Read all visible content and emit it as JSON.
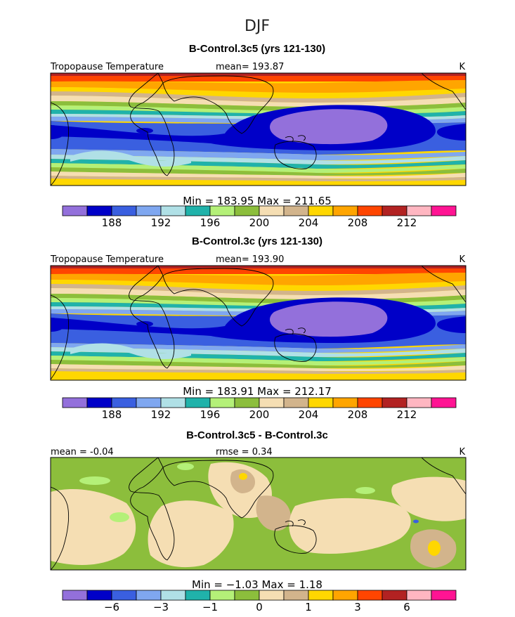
{
  "season": "DJF",
  "units": "K",
  "chart_data": [
    {
      "type": "heatmap",
      "title": "B-Control.3c5 (yrs 121-130)",
      "subtitle_left": "Tropopause Temperature",
      "subtitle_mid": "mean=  193.87",
      "units": "K",
      "range_label": "Min  =  183.95  Max  =  211.65",
      "min": 183.95,
      "max": 211.65,
      "mean": 193.87,
      "colorbar_tick_labels": [
        "188",
        "192",
        "196",
        "200",
        "204",
        "208",
        "212"
      ],
      "contour_levels": [
        186,
        188,
        190,
        192,
        194,
        196,
        198,
        200,
        202,
        204,
        206,
        208,
        210,
        212
      ]
    },
    {
      "type": "heatmap",
      "title": "B-Control.3c (yrs 121-130)",
      "subtitle_left": "Tropopause Temperature",
      "subtitle_mid": "mean=  193.90",
      "units": "K",
      "range_label": "Min  =  183.91  Max  =  212.17",
      "min": 183.91,
      "max": 212.17,
      "mean": 193.9,
      "colorbar_tick_labels": [
        "188",
        "192",
        "196",
        "200",
        "204",
        "208",
        "212"
      ],
      "contour_levels": [
        186,
        188,
        190,
        192,
        194,
        196,
        198,
        200,
        202,
        204,
        206,
        208,
        210,
        212
      ]
    },
    {
      "type": "heatmap",
      "title": "B-Control.3c5 - B-Control.3c",
      "subtitle_left": "mean  =  -0.04",
      "subtitle_mid": "rmse  =  0.34",
      "units": "K",
      "range_label": "Min  =  −1.03  Max  =  1.18",
      "min": -1.03,
      "max": 1.18,
      "mean": -0.04,
      "rmse": 0.34,
      "colorbar_tick_labels": [
        "−6",
        "−3",
        "−1",
        "0",
        "1",
        "3",
        "6"
      ],
      "contour_levels": [
        -8,
        -6,
        -4,
        -3,
        -2,
        -1,
        -0.5,
        0,
        0.5,
        1,
        2,
        3,
        4,
        6,
        8
      ]
    }
  ],
  "colors": {
    "palette": [
      "#9370db",
      "#0000c8",
      "#3a5fe0",
      "#7fa7f0",
      "#b0e0e6",
      "#20b2aa",
      "#b4f078",
      "#8cbe3c",
      "#f5deb3",
      "#d2b48c",
      "#ffd700",
      "#ffa500",
      "#ff4500",
      "#b22222",
      "#ffb6c1",
      "#ff1493"
    ]
  }
}
